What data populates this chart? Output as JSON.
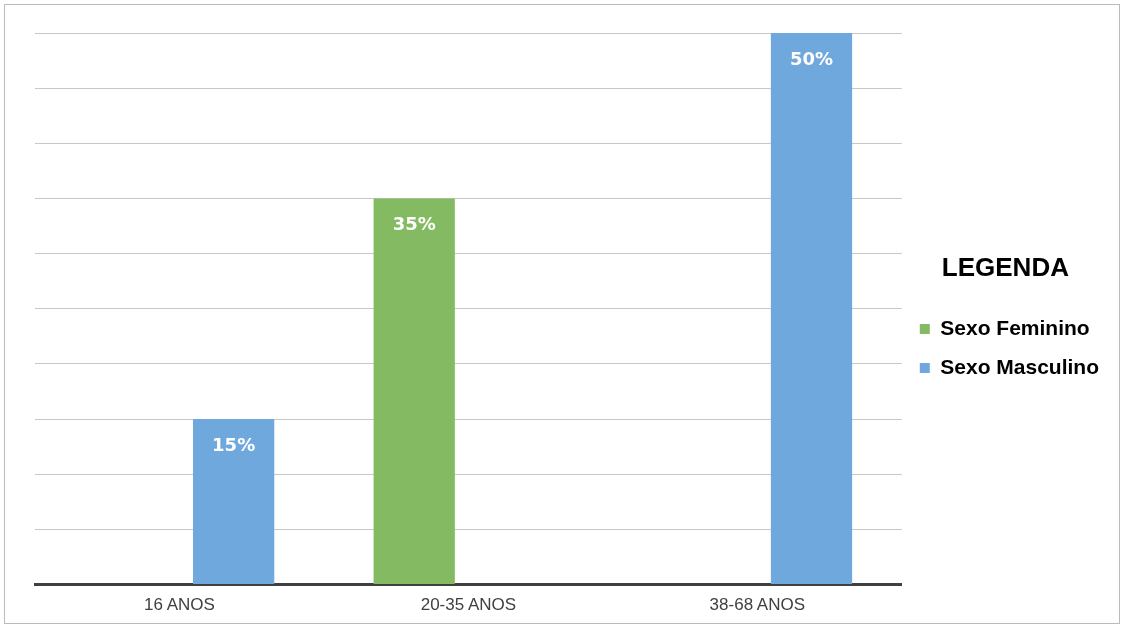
{
  "chart_data": {
    "type": "bar",
    "categories": [
      "16 ANOS",
      "20-35 ANOS",
      "38-68 ANOS"
    ],
    "series": [
      {
        "name": "Sexo Feminino",
        "color": "#84bb62",
        "values": [
          null,
          35,
          null
        ],
        "value_labels": [
          null,
          "35%",
          null
        ]
      },
      {
        "name": "Sexo Masculino",
        "color": "#6fa8dc",
        "values": [
          15,
          null,
          50
        ],
        "value_labels": [
          "15%",
          null,
          "50%"
        ]
      }
    ],
    "legend_title": "LEGENDA",
    "legend": "right",
    "tick_labels": "x",
    "grid": "y"
  }
}
